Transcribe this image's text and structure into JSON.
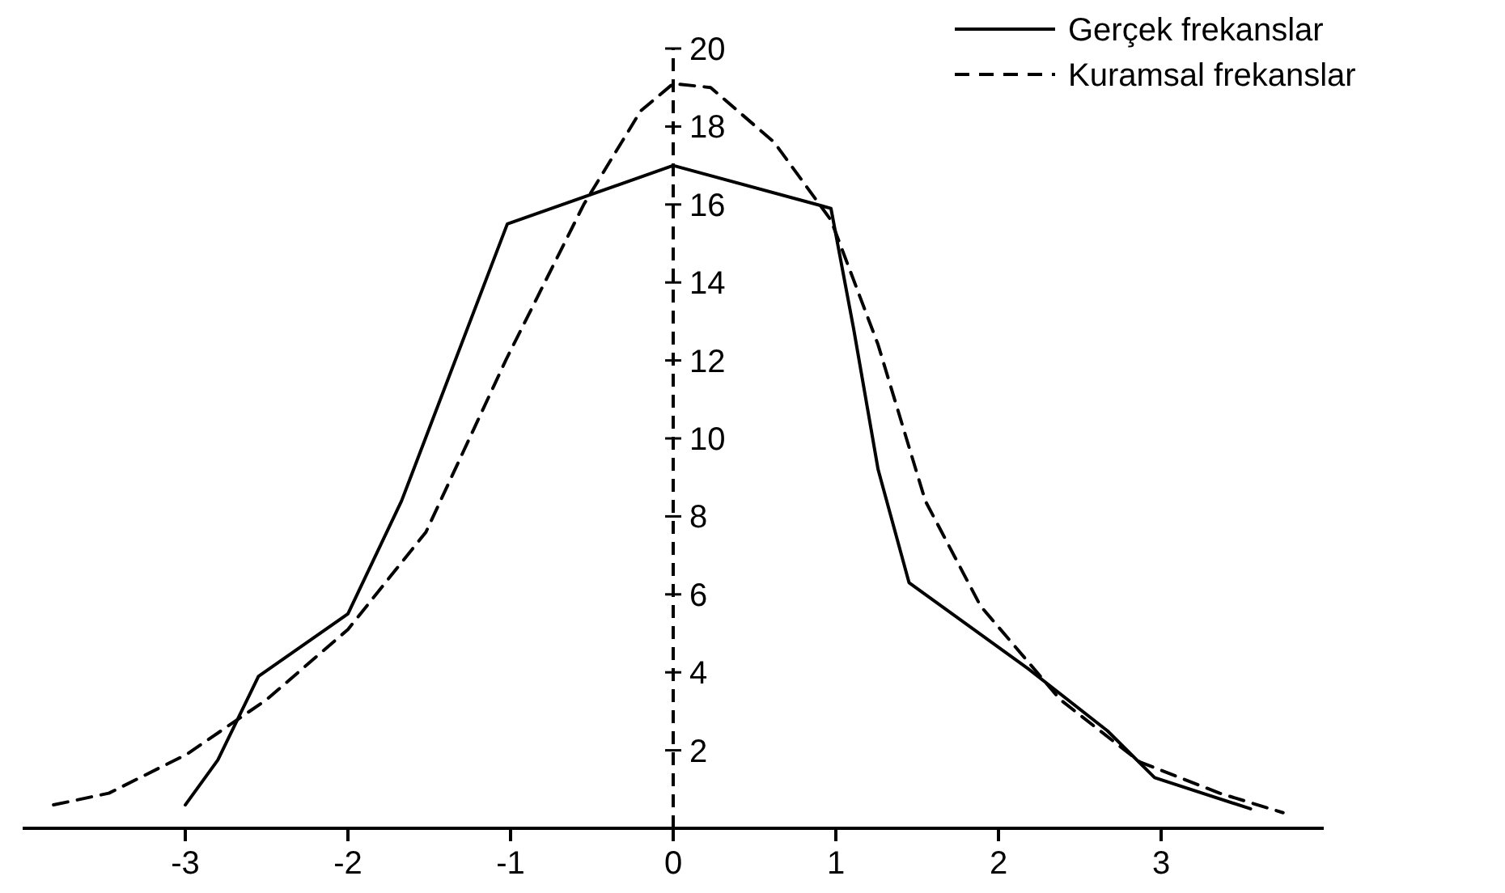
{
  "chart_data": {
    "type": "line",
    "xlim": [
      -4,
      4
    ],
    "xticks": [
      -3,
      -2,
      -1,
      0,
      1,
      2,
      3
    ],
    "ylim": [
      0,
      20
    ],
    "yticks": [
      2,
      4,
      6,
      8,
      10,
      12,
      14,
      16,
      18,
      20
    ],
    "legend": "top right",
    "marker": "none",
    "series": [
      {
        "name": "Gerçek frekanslar",
        "color": "#000000",
        "line_style": "solid",
        "x": [
          -3.0,
          -2.8,
          -2.55,
          -2.0,
          -1.67,
          -1.02,
          0,
          0.97,
          1.11,
          1.26,
          1.45,
          2.18,
          2.67,
          2.96,
          3.55
        ],
        "values": [
          0.6,
          1.75,
          3.9,
          5.5,
          8.4,
          15.5,
          17.0,
          15.9,
          12.8,
          9.2,
          6.3,
          4.1,
          2.5,
          1.3,
          0.5
        ]
      },
      {
        "name": "Kuramsal frekanslar",
        "color": "#000000",
        "line_style": "dashed",
        "x": [
          -3.81,
          -3.47,
          -2.99,
          -2.5,
          -2.0,
          -1.52,
          -1.03,
          -0.55,
          -0.2,
          0,
          0.23,
          0.62,
          0.97,
          1.26,
          1.55,
          1.89,
          2.38,
          2.87,
          3.36,
          3.75
        ],
        "values": [
          0.6,
          0.9,
          1.9,
          3.3,
          5.1,
          7.6,
          12,
          16,
          18.4,
          19.1,
          19,
          17.6,
          15.6,
          12.4,
          8.4,
          5.7,
          3.3,
          1.7,
          0.9,
          0.4
        ]
      }
    ]
  }
}
